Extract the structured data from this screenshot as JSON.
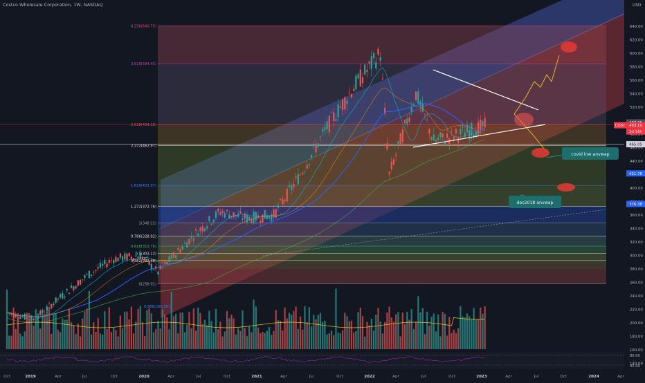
{
  "header": {
    "title": "Costco Wholesale Corporation, 1W, NASDAQ",
    "currency": "USD"
  },
  "price_axis": {
    "ticks": [
      "640.00",
      "620.00",
      "600.00",
      "580.00",
      "560.00",
      "540.00",
      "520.00",
      "500.00",
      "480.00",
      "460.00",
      "440.00",
      "420.00",
      "400.00",
      "380.00",
      "360.00",
      "340.00",
      "320.00",
      "300.00",
      "280.00",
      "260.00",
      "240.00",
      "220.00",
      "200.00",
      "180.00",
      "160.00",
      "140.00"
    ],
    "rsi_ticks": [
      "80.00",
      "40.00"
    ],
    "labels": {
      "price_a": "497.36",
      "symbol": "COST",
      "price_b": "493.19",
      "countdown": "3d 16h",
      "level_465": "465.05",
      "level_421": "421.78",
      "level_376": "376.38"
    }
  },
  "time_axis": [
    "Oct",
    "2019",
    "Apr",
    "Jul",
    "Oct",
    "2020",
    "Apr",
    "Jul",
    "Oct",
    "2021",
    "Apr",
    "Jul",
    "Oct",
    "2022",
    "Apr",
    "Jul",
    "Oct",
    "2023",
    "Apr",
    "Jul",
    "Oct",
    "2024",
    "Apr"
  ],
  "fib_levels": [
    "4.236(640.75)",
    "3.618(584.45)",
    "2.618(494.18)",
    "2.272(462.97)",
    "1.618(403.97)",
    "1.272(372.76)",
    "1(348.22)",
    "0.786(328.92)",
    "0.618(313.76)",
    "0.5(303.12)",
    "0.382(292.48)",
    "0(258.01)",
    "0.886(258.50)"
  ],
  "annotations": {
    "covid_label": "covid low anvwap",
    "dec_label": "dec2018 anvwap"
  },
  "colors": {
    "background": "#131722",
    "up": "#26a69a",
    "down": "#ef5350",
    "ma_blue": "#2962ff",
    "accent_red": "#f23645"
  },
  "chart_data": {
    "type": "candlestick",
    "title": "Costco Wholesale Corporation, 1W, NASDAQ",
    "ylim": [
      130,
      655
    ],
    "x_range": [
      "2018-10",
      "2024-04"
    ],
    "series": [
      {
        "name": "COST",
        "x": [
          "2018-10",
          "2019-01",
          "2019-04",
          "2019-07",
          "2019-10",
          "2020-01",
          "2020-03",
          "2020-07",
          "2020-10",
          "2021-01",
          "2021-04",
          "2021-07",
          "2021-10",
          "2022-01",
          "2022-04",
          "2022-05",
          "2022-08",
          "2022-10",
          "2023-01",
          "2023-04"
        ],
        "values": [
          215,
          205,
          238,
          270,
          295,
          300,
          275,
          330,
          365,
          355,
          360,
          420,
          490,
          550,
          600,
          420,
          540,
          470,
          480,
          493
        ]
      }
    ]
  }
}
